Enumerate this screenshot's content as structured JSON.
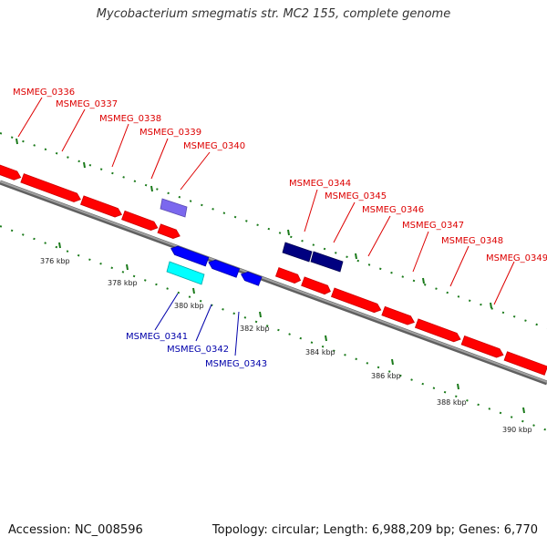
{
  "title": "Mycobacterium smegmatis str. MC2 155, complete genome",
  "footer": {
    "accession": "Accession: NC_008596",
    "stats": "Topology: circular; Length: 6,988,209 bp; Genes: 6,770"
  },
  "colors": {
    "forward_gene": "#ff0000",
    "reverse_gene": "#0000ff",
    "dark_reverse_gene": "#000080",
    "purple_gene": "#7b68ee",
    "cyan_gene": "#00ffff",
    "tick": "#1a7a1a",
    "backbone": "#808080",
    "forward_label": "#dd0000",
    "reverse_label": "#0000aa"
  },
  "forward_labels": [
    "MSMEG_0336",
    "MSMEG_0337",
    "MSMEG_0338",
    "MSMEG_0339",
    "MSMEG_0340",
    "MSMEG_0344",
    "MSMEG_0345",
    "MSMEG_0346",
    "MSMEG_0347",
    "MSMEG_0348",
    "MSMEG_0349"
  ],
  "reverse_labels": [
    "MSMEG_0341",
    "MSMEG_0342",
    "MSMEG_0343"
  ],
  "kbp_labels": [
    "376 kbp",
    "378 kbp",
    "380 kbp",
    "382 kbp",
    "384 kbp",
    "386 kbp",
    "388 kbp",
    "390 kbp"
  ]
}
